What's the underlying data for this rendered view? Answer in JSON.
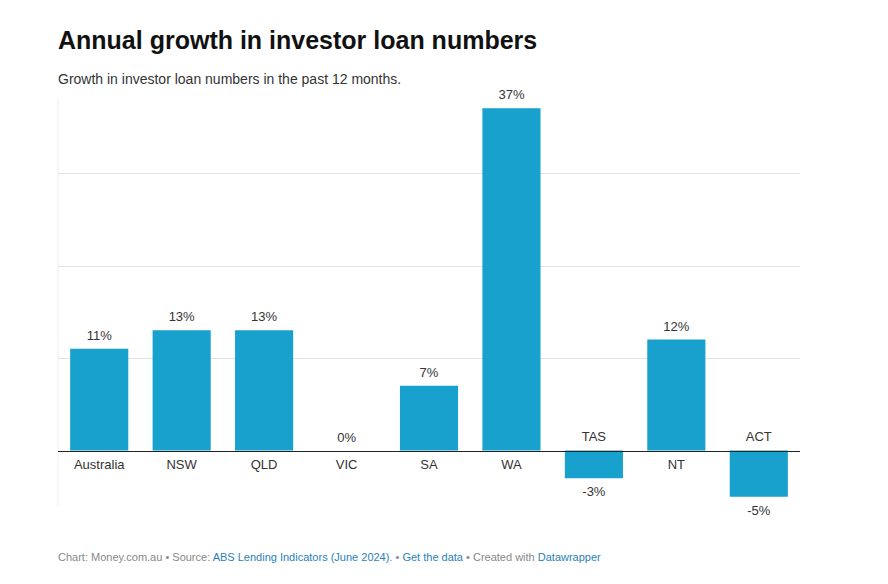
{
  "chart_data": {
    "type": "bar",
    "title": "Annual growth in investor loan numbers",
    "subtitle": "Growth in investor loan numbers in the past 12 months.",
    "categories": [
      "Australia",
      "NSW",
      "QLD",
      "VIC",
      "SA",
      "WA",
      "TAS",
      "NT",
      "ACT"
    ],
    "values": [
      11,
      13,
      13,
      0,
      7,
      37,
      -3,
      12,
      -5
    ],
    "value_labels": [
      "11%",
      "13%",
      "13%",
      "0%",
      "7%",
      "37%",
      "-3%",
      "12%",
      "-5%"
    ],
    "color": "#18a1cd",
    "ylim": [
      -6,
      38
    ],
    "yticks": [
      0,
      10,
      20,
      30
    ],
    "grid": true,
    "data_labels": true,
    "tick_labels": "x",
    "footer": [
      "Chart: Money.com.au • Source: ",
      "ABS Lending Indicators (June 2024)",
      ". • ",
      "Get the data",
      " • Created with ",
      "Datawrapper"
    ]
  }
}
